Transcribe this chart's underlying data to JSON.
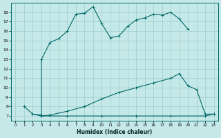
{
  "xlabel": "Humidex (Indice chaleur)",
  "bg_color": "#c5e8e8",
  "grid_color": "#9ecece",
  "line_color": "#006868",
  "xlim": [
    -0.5,
    23.5
  ],
  "ylim": [
    6.5,
    19.0
  ],
  "xticks": [
    0,
    1,
    2,
    3,
    4,
    5,
    6,
    7,
    8,
    9,
    10,
    11,
    12,
    13,
    14,
    15,
    16,
    17,
    18,
    19,
    20,
    21,
    22,
    23
  ],
  "yticks": [
    7,
    8,
    9,
    10,
    11,
    12,
    13,
    14,
    15,
    16,
    17,
    18
  ],
  "line1_x": [
    1,
    2,
    3,
    3,
    4,
    5,
    6,
    7,
    8,
    9,
    10,
    11,
    12,
    13,
    14,
    15,
    16,
    17,
    18,
    19,
    20
  ],
  "line1_y": [
    8,
    7.2,
    7.1,
    13.0,
    14.8,
    15.2,
    16.0,
    17.8,
    17.9,
    18.6,
    16.8,
    15.3,
    15.5,
    16.5,
    17.2,
    17.4,
    17.8,
    17.7,
    18.0,
    17.3,
    16.2
  ],
  "line2_x": [
    3,
    4,
    6,
    8,
    10,
    12,
    14,
    16,
    18,
    19,
    20,
    21,
    22,
    23
  ],
  "line2_y": [
    7.0,
    7.1,
    7.5,
    8.0,
    8.8,
    9.5,
    10.0,
    10.5,
    11.0,
    11.5,
    10.2,
    9.8,
    7.2,
    7.2
  ],
  "line3_x": [
    2,
    3,
    6,
    10,
    14,
    18,
    22,
    23
  ],
  "line3_y": [
    7.2,
    7.0,
    7.0,
    7.0,
    7.0,
    7.0,
    7.0,
    7.2
  ]
}
